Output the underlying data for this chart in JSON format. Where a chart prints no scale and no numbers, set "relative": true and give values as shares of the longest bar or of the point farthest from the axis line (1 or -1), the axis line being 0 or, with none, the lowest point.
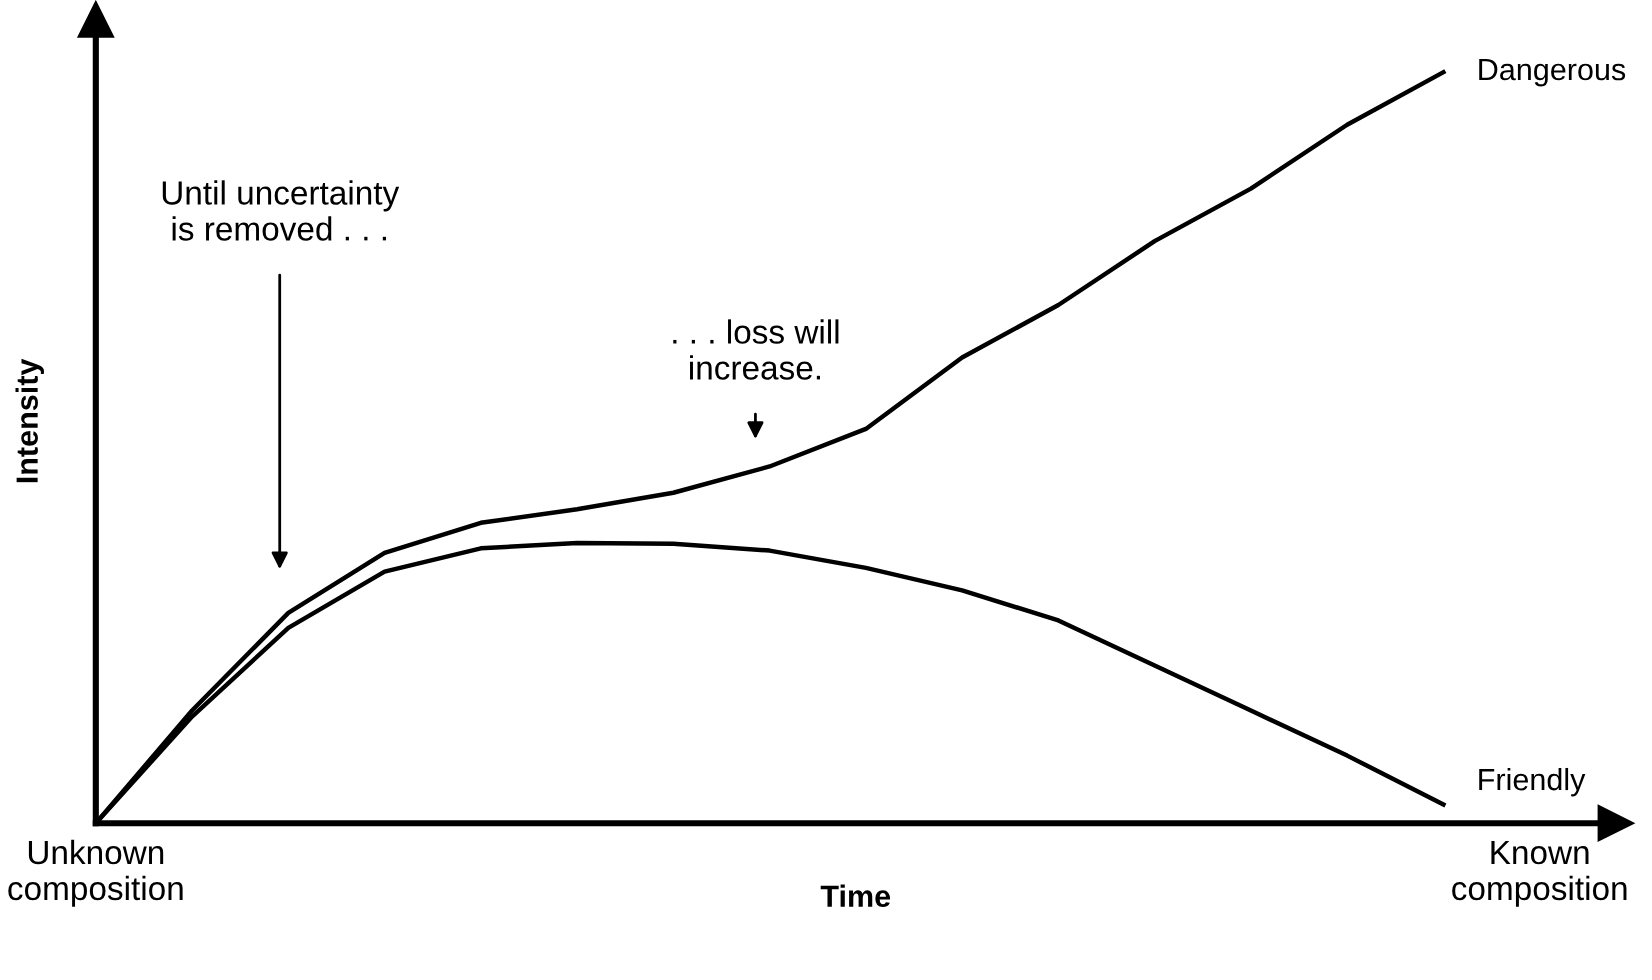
{
  "chart_data": {
    "type": "line",
    "relative": true,
    "xlabel": "Time",
    "ylabel": "Intensity",
    "categories": [
      "Unknown\ncomposition",
      null,
      null,
      null,
      null,
      null,
      null,
      null,
      null,
      null,
      null,
      null,
      null,
      null,
      null,
      "Known\ncomposition"
    ],
    "grid": false,
    "legend": false,
    "marker": "none",
    "line_style": "solid",
    "series": [
      {
        "name": "Dangerous",
        "color": "#000000",
        "values": [
          0,
          0.15,
          0.28,
          0.36,
          0.4,
          0.418,
          0.44,
          0.475,
          0.525,
          0.62,
          0.69,
          0.775,
          0.845,
          0.93,
          1,
          null
        ]
      },
      {
        "name": "Friendly",
        "color": "#000000",
        "values": [
          0,
          0.142,
          0.26,
          0.335,
          0.366,
          0.373,
          0.372,
          0.363,
          0.34,
          0.31,
          0.27,
          0.21,
          0.15,
          0.09,
          0.025,
          null
        ]
      }
    ],
    "annotations": [
      "Until uncertainty\nis removed . . .",
      ". . . loss will\nincrease."
    ]
  }
}
